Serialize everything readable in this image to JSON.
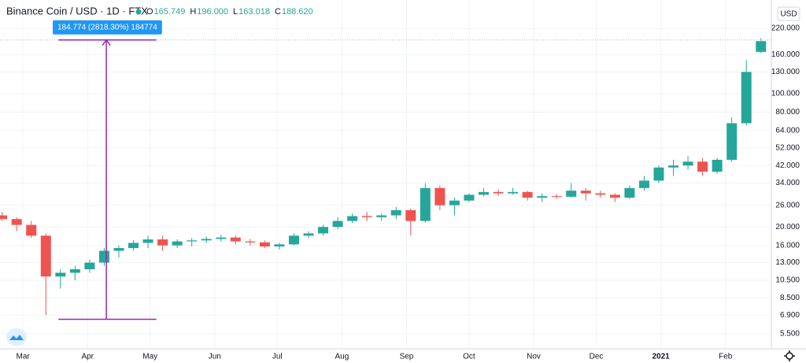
{
  "header": {
    "title": "Binance Coin / USD · 1D · FTX",
    "ohlc": [
      {
        "label": "O",
        "value": "165.749"
      },
      {
        "label": "H",
        "value": "196.000"
      },
      {
        "label": "L",
        "value": "163.018"
      },
      {
        "label": "C",
        "value": "188.620"
      }
    ],
    "currency": "USD"
  },
  "chart_data": {
    "type": "candlestick",
    "log_scale": true,
    "grid": true,
    "up_color": "#26a69a",
    "down_color": "#ef5350",
    "x": [
      "2020-02-20",
      "2020-02-27",
      "2020-03-05",
      "2020-03-12",
      "2020-03-19",
      "2020-03-26",
      "2020-04-02",
      "2020-04-09",
      "2020-04-16",
      "2020-04-23",
      "2020-04-30",
      "2020-05-07",
      "2020-05-14",
      "2020-05-21",
      "2020-05-28",
      "2020-06-04",
      "2020-06-11",
      "2020-06-18",
      "2020-06-25",
      "2020-07-02",
      "2020-07-09",
      "2020-07-16",
      "2020-07-23",
      "2020-07-30",
      "2020-08-06",
      "2020-08-13",
      "2020-08-20",
      "2020-08-27",
      "2020-09-03",
      "2020-09-10",
      "2020-09-17",
      "2020-09-24",
      "2020-10-01",
      "2020-10-08",
      "2020-10-15",
      "2020-10-22",
      "2020-10-29",
      "2020-11-05",
      "2020-11-12",
      "2020-11-19",
      "2020-11-26",
      "2020-12-03",
      "2020-12-10",
      "2020-12-17",
      "2020-12-24",
      "2020-12-31",
      "2021-01-07",
      "2021-01-14",
      "2021-01-21",
      "2021-01-28",
      "2021-02-04",
      "2021-02-11",
      "2021-02-18"
    ],
    "open": [
      23,
      22,
      20.5,
      18,
      11,
      11.5,
      12,
      13,
      15,
      15.5,
      16.5,
      17.2,
      16,
      16.8,
      17,
      17.3,
      17.6,
      16.8,
      16.6,
      15.8,
      16.2,
      18,
      18.5,
      20,
      21.5,
      22.8,
      22.5,
      23,
      24.5,
      21.5,
      32,
      26,
      27.5,
      29.5,
      30.5,
      30,
      30.5,
      28.5,
      29,
      28.8,
      31,
      30,
      29.5,
      28.5,
      32,
      35,
      41,
      42,
      44,
      39,
      45,
      70,
      165.749
    ],
    "high": [
      24,
      22.5,
      21.5,
      18.5,
      12,
      12.5,
      13.5,
      15.5,
      16,
      17,
      18,
      18,
      17.2,
      17.5,
      17.8,
      18.2,
      18,
      17.3,
      17,
      16.5,
      18.5,
      19,
      20.5,
      22.5,
      23.5,
      24,
      23.5,
      25.5,
      25,
      34,
      33,
      28.5,
      30,
      32,
      31.5,
      32,
      31,
      30,
      29.8,
      34,
      32,
      31,
      30,
      33,
      37,
      42,
      45,
      47,
      46,
      46,
      75,
      150,
      196
    ],
    "low": [
      21.5,
      19,
      17.5,
      6.9,
      9.5,
      10.5,
      11.5,
      12.5,
      13.8,
      15,
      15.5,
      15,
      15.5,
      15.8,
      16.5,
      16.8,
      16.2,
      16,
      15.5,
      15.2,
      16,
      17.5,
      18,
      19.5,
      21,
      21.5,
      21.5,
      22,
      18,
      21,
      24.5,
      23,
      27,
      29,
      29,
      29.5,
      27.5,
      27,
      28,
      28.5,
      27.5,
      28.5,
      27,
      28,
      31,
      34,
      37,
      40,
      37,
      38,
      44,
      68,
      163.018
    ],
    "close": [
      22,
      20.5,
      18,
      11,
      11.5,
      12,
      13,
      15,
      15.5,
      16.5,
      17.2,
      16,
      16.8,
      17,
      17.3,
      17.6,
      16.8,
      16.6,
      15.8,
      16.2,
      18,
      18.5,
      20,
      21.5,
      22.8,
      22.5,
      23,
      24.5,
      21.5,
      32,
      26,
      27.5,
      29.5,
      30.5,
      30,
      30.5,
      28.5,
      29,
      28.8,
      31,
      30,
      29.5,
      28.5,
      32,
      35,
      41,
      42,
      44,
      39,
      45,
      70,
      130,
      188.62
    ],
    "xlim": [
      "2020-02-19",
      "2021-02-23"
    ],
    "xticks": [
      {
        "value": "2020-03-01",
        "label": "Mar"
      },
      {
        "value": "2020-04-01",
        "label": "Apr"
      },
      {
        "value": "2020-05-01",
        "label": "May"
      },
      {
        "value": "2020-06-01",
        "label": "Jun"
      },
      {
        "value": "2020-07-01",
        "label": "Jul"
      },
      {
        "value": "2020-08-01",
        "label": "Aug"
      },
      {
        "value": "2020-09-01",
        "label": "Sep"
      },
      {
        "value": "2020-10-01",
        "label": "Oct"
      },
      {
        "value": "2020-11-01",
        "label": "Nov"
      },
      {
        "value": "2020-12-01",
        "label": "Dec"
      },
      {
        "value": "2021-01-01",
        "label": "2021"
      },
      {
        "value": "2021-02-01",
        "label": "Feb"
      }
    ],
    "ylim": [
      4.59,
      310
    ],
    "yticks": [
      {
        "value": 5.5,
        "label": "5.500"
      },
      {
        "value": 6.9,
        "label": "6.900"
      },
      {
        "value": 8.5,
        "label": "8.500"
      },
      {
        "value": 10.5,
        "label": "10.500"
      },
      {
        "value": 13,
        "label": "13.000"
      },
      {
        "value": 16,
        "label": "16.000"
      },
      {
        "value": 20,
        "label": "20.000"
      },
      {
        "value": 26,
        "label": "26.000"
      },
      {
        "value": 34,
        "label": "34.000"
      },
      {
        "value": 42,
        "label": "42.000"
      },
      {
        "value": 52,
        "label": "52.000"
      },
      {
        "value": 64,
        "label": "64.000"
      },
      {
        "value": 80,
        "label": "80.000"
      },
      {
        "value": 100,
        "label": "100.000"
      },
      {
        "value": 130,
        "label": "130.000"
      },
      {
        "value": 160,
        "label": "160.000"
      },
      {
        "value": 220,
        "label": "220.000"
      }
    ],
    "measure": {
      "from": 6.556,
      "to": 191.33,
      "x_from": "2020-03-18",
      "x_to": "2020-05-04",
      "x_arrow": "2020-04-10",
      "label": "184.774 (2818.30%) 184774",
      "color": "#9c27b0"
    }
  }
}
